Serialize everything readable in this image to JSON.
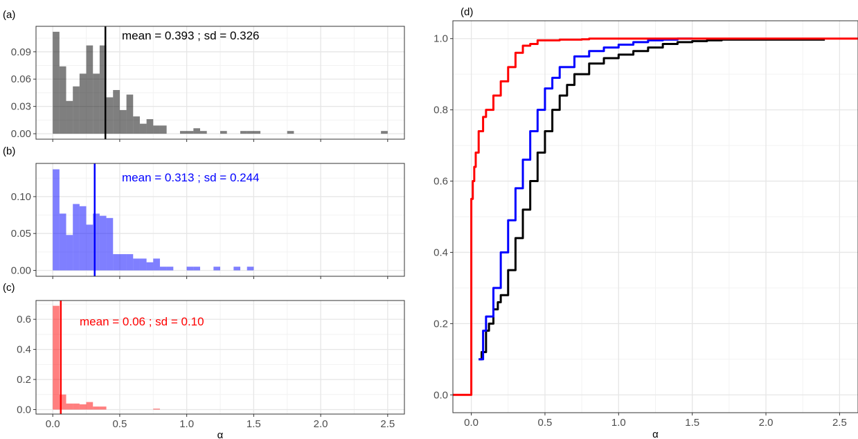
{
  "colors": {
    "a": "#000000",
    "b": "#0000ff",
    "c": "#ff0000",
    "grid_major": "#e6e6e6",
    "grid_minor": "#f2f2f2",
    "panel_border": "#333333",
    "tick_text": "#4d4d4d"
  },
  "chart_data": [
    {
      "type": "bar",
      "panel_label": "(a)",
      "color": "#000000",
      "fill_opacity": 0.5,
      "bin_width": 0.05,
      "bin_starts": [
        0.0,
        0.05,
        0.1,
        0.15,
        0.2,
        0.25,
        0.3,
        0.35,
        0.4,
        0.45,
        0.5,
        0.55,
        0.6,
        0.65,
        0.7,
        0.75,
        0.8,
        0.85,
        0.9,
        0.95,
        1.0,
        1.05,
        1.1,
        1.15,
        1.2,
        1.25,
        1.3,
        1.35,
        1.4,
        1.45,
        1.5,
        1.55,
        1.6,
        1.65,
        1.7,
        1.75,
        2.45
      ],
      "values": [
        0.112,
        0.074,
        0.036,
        0.052,
        0.066,
        0.097,
        0.066,
        0.097,
        0.04,
        0.048,
        0.026,
        0.043,
        0.019,
        0.011,
        0.016,
        0.009,
        0.009,
        0.0,
        0.0,
        0.003,
        0.003,
        0.006,
        0.003,
        0.0,
        0.0,
        0.003,
        0.0,
        0.0,
        0.003,
        0.003,
        0.003,
        0.0,
        0.0,
        0.0,
        0.0,
        0.003,
        0.003
      ],
      "mean": 0.393,
      "annotation": "mean = 0.393 ; sd = 0.326",
      "ylim": [
        -0.006,
        0.118
      ],
      "yticks": [
        0.0,
        0.03,
        0.06,
        0.09
      ],
      "ytick_labels": [
        "0.00",
        "0.03",
        "0.06",
        "0.09"
      ],
      "xlim": [
        -0.125,
        2.625
      ],
      "xticks": [
        0.0,
        0.5,
        1.0,
        1.5,
        2.0,
        2.5
      ],
      "xtick_labels": [
        "0.0",
        "0.5",
        "1.0",
        "1.5",
        "2.0",
        "2.5"
      ],
      "grid": true
    },
    {
      "type": "bar",
      "panel_label": "(b)",
      "color": "#0000ff",
      "fill_opacity": 0.5,
      "bin_width": 0.05,
      "bin_starts": [
        0.0,
        0.05,
        0.1,
        0.15,
        0.2,
        0.25,
        0.3,
        0.35,
        0.4,
        0.45,
        0.5,
        0.55,
        0.6,
        0.65,
        0.7,
        0.75,
        0.8,
        0.85,
        0.9,
        0.95,
        1.0,
        1.05,
        1.1,
        1.15,
        1.2,
        1.25,
        1.3,
        1.35,
        1.4,
        1.45
      ],
      "values": [
        0.137,
        0.077,
        0.048,
        0.09,
        0.087,
        0.062,
        0.077,
        0.074,
        0.071,
        0.022,
        0.022,
        0.022,
        0.016,
        0.016,
        0.011,
        0.016,
        0.005,
        0.005,
        0.0,
        0.0,
        0.005,
        0.005,
        0.0,
        0.0,
        0.005,
        0.0,
        0.0,
        0.005,
        0.0,
        0.005
      ],
      "mean": 0.313,
      "annotation": "mean = 0.313 ; sd = 0.244",
      "ylim": [
        -0.008,
        0.145
      ],
      "yticks": [
        0.0,
        0.05,
        0.1
      ],
      "ytick_labels": [
        "0.00",
        "0.05",
        "0.10"
      ],
      "xlim": [
        -0.125,
        2.625
      ],
      "xticks": [
        0.0,
        0.5,
        1.0,
        1.5,
        2.0,
        2.5
      ],
      "xtick_labels": [
        "0.0",
        "0.5",
        "1.0",
        "1.5",
        "2.0",
        "2.5"
      ],
      "grid": true
    },
    {
      "type": "bar",
      "panel_label": "(c)",
      "color": "#ff0000",
      "fill_opacity": 0.5,
      "bin_width": 0.05,
      "bin_starts": [
        0.0,
        0.05,
        0.1,
        0.15,
        0.2,
        0.25,
        0.3,
        0.35,
        0.75
      ],
      "values": [
        0.69,
        0.1,
        0.04,
        0.04,
        0.035,
        0.05,
        0.02,
        0.02,
        0.006
      ],
      "mean": 0.06,
      "annotation": "mean = 0.06 ; sd = 0.10",
      "ylim": [
        -0.03,
        0.725
      ],
      "yticks": [
        0.0,
        0.2,
        0.4,
        0.6
      ],
      "ytick_labels": [
        "0.0",
        "0.2",
        "0.4",
        "0.6"
      ],
      "xlim": [
        -0.125,
        2.625
      ],
      "xticks": [
        0.0,
        0.5,
        1.0,
        1.5,
        2.0,
        2.5
      ],
      "xtick_labels": [
        "0.0",
        "0.5",
        "1.0",
        "1.5",
        "2.0",
        "2.5"
      ],
      "xlabel": "α",
      "grid": true
    },
    {
      "type": "line",
      "panel_label": "(d)",
      "xlabel": "α",
      "xlim": [
        -0.125,
        2.625
      ],
      "ylim": [
        -0.05,
        1.05
      ],
      "xticks": [
        0.0,
        0.5,
        1.0,
        1.5,
        2.0,
        2.5
      ],
      "xtick_labels": [
        "0.0",
        "0.5",
        "1.0",
        "1.5",
        "2.0",
        "2.5"
      ],
      "yticks": [
        0.0,
        0.2,
        0.4,
        0.6,
        0.8,
        1.0
      ],
      "ytick_labels": [
        "0.0",
        "0.2",
        "0.4",
        "0.6",
        "0.8",
        "1.0"
      ],
      "grid": true,
      "series": [
        {
          "color": "#000000",
          "x": [
            0.05,
            0.07,
            0.1,
            0.12,
            0.15,
            0.18,
            0.2,
            0.25,
            0.3,
            0.35,
            0.4,
            0.45,
            0.5,
            0.55,
            0.6,
            0.65,
            0.7,
            0.8,
            0.9,
            1.0,
            1.1,
            1.2,
            1.3,
            1.4,
            1.5,
            1.6,
            1.7,
            2.4
          ],
          "y": [
            0.1,
            0.12,
            0.18,
            0.2,
            0.24,
            0.26,
            0.28,
            0.35,
            0.44,
            0.52,
            0.6,
            0.68,
            0.74,
            0.8,
            0.84,
            0.87,
            0.9,
            0.93,
            0.945,
            0.955,
            0.965,
            0.975,
            0.985,
            0.99,
            0.993,
            0.995,
            0.997,
            0.997
          ]
        },
        {
          "color": "#0000ff",
          "x": [
            0.05,
            0.08,
            0.1,
            0.15,
            0.2,
            0.25,
            0.3,
            0.35,
            0.4,
            0.45,
            0.5,
            0.55,
            0.6,
            0.7,
            0.8,
            0.9,
            1.0,
            1.1,
            1.2,
            1.3,
            1.4,
            1.5
          ],
          "y": [
            0.1,
            0.18,
            0.22,
            0.3,
            0.4,
            0.49,
            0.58,
            0.66,
            0.74,
            0.8,
            0.86,
            0.89,
            0.92,
            0.95,
            0.965,
            0.975,
            0.983,
            0.99,
            0.995,
            0.997,
            1.0,
            1.0
          ]
        },
        {
          "color": "#ff0000",
          "x": [
            -0.125,
            0.0,
            0.0,
            0.01,
            0.02,
            0.03,
            0.05,
            0.08,
            0.1,
            0.15,
            0.2,
            0.25,
            0.3,
            0.35,
            0.4,
            0.45,
            0.6,
            0.75,
            0.8,
            2.625
          ],
          "y": [
            0.0,
            0.0,
            0.55,
            0.6,
            0.64,
            0.68,
            0.74,
            0.78,
            0.8,
            0.84,
            0.88,
            0.92,
            0.96,
            0.98,
            0.985,
            0.995,
            0.997,
            0.998,
            1.0,
            1.0
          ]
        }
      ]
    }
  ]
}
